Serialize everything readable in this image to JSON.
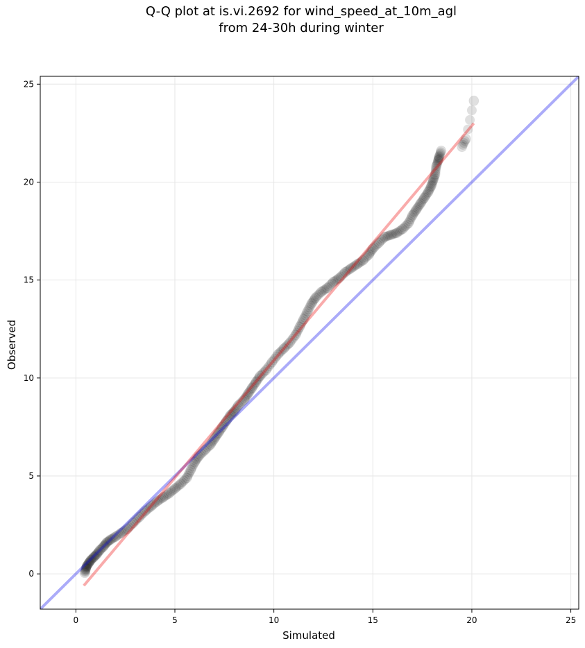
{
  "chart_data": {
    "type": "scatter",
    "title": "Q-Q plot at is.vi.2692 for wind_speed_at_10m_agl",
    "subtitle": "from 24-30h during winter",
    "xlabel": "Simulated",
    "ylabel": "Observed",
    "xlim": [
      -1.8,
      25.4
    ],
    "ylim": [
      -1.8,
      25.4
    ],
    "xticks": [
      0,
      5,
      10,
      15,
      20,
      25
    ],
    "yticks": [
      0,
      5,
      10,
      15,
      20,
      25
    ],
    "grid": true,
    "series": [
      {
        "marker": "circle",
        "color": "#000000",
        "points": [
          [
            0.45,
            0.05
          ],
          [
            0.5,
            0.25
          ],
          [
            0.55,
            0.4
          ],
          [
            0.65,
            0.55
          ],
          [
            0.75,
            0.7
          ],
          [
            0.9,
            0.85
          ],
          [
            1.05,
            1.0
          ],
          [
            1.2,
            1.2
          ],
          [
            1.4,
            1.4
          ],
          [
            1.55,
            1.6
          ],
          [
            1.75,
            1.75
          ],
          [
            2.0,
            1.9
          ],
          [
            2.3,
            2.1
          ],
          [
            2.6,
            2.3
          ],
          [
            2.9,
            2.6
          ],
          [
            3.2,
            2.9
          ],
          [
            3.5,
            3.2
          ],
          [
            3.8,
            3.45
          ],
          [
            4.1,
            3.7
          ],
          [
            4.4,
            3.9
          ],
          [
            4.7,
            4.1
          ],
          [
            5.0,
            4.35
          ],
          [
            5.3,
            4.6
          ],
          [
            5.6,
            4.9
          ],
          [
            5.8,
            5.3
          ],
          [
            6.0,
            5.7
          ],
          [
            6.2,
            6.0
          ],
          [
            6.5,
            6.3
          ],
          [
            6.8,
            6.6
          ],
          [
            7.0,
            6.9
          ],
          [
            7.2,
            7.2
          ],
          [
            7.4,
            7.5
          ],
          [
            7.6,
            7.8
          ],
          [
            7.8,
            8.1
          ],
          [
            8.0,
            8.3
          ],
          [
            8.2,
            8.6
          ],
          [
            8.5,
            8.9
          ],
          [
            8.7,
            9.2
          ],
          [
            8.9,
            9.5
          ],
          [
            9.1,
            9.8
          ],
          [
            9.3,
            10.1
          ],
          [
            9.6,
            10.4
          ],
          [
            9.9,
            10.8
          ],
          [
            10.2,
            11.2
          ],
          [
            10.5,
            11.5
          ],
          [
            10.8,
            11.8
          ],
          [
            11.1,
            12.2
          ],
          [
            11.3,
            12.6
          ],
          [
            11.5,
            13.0
          ],
          [
            11.7,
            13.4
          ],
          [
            11.9,
            13.8
          ],
          [
            12.1,
            14.1
          ],
          [
            12.4,
            14.4
          ],
          [
            12.7,
            14.6
          ],
          [
            13.0,
            14.9
          ],
          [
            13.3,
            15.1
          ],
          [
            13.6,
            15.4
          ],
          [
            13.9,
            15.6
          ],
          [
            14.2,
            15.8
          ],
          [
            14.5,
            16.0
          ],
          [
            14.8,
            16.3
          ],
          [
            15.0,
            16.6
          ],
          [
            15.3,
            16.9
          ],
          [
            15.6,
            17.2
          ],
          [
            15.9,
            17.3
          ],
          [
            16.2,
            17.4
          ],
          [
            16.5,
            17.6
          ],
          [
            16.8,
            17.9
          ],
          [
            17.0,
            18.3
          ],
          [
            17.2,
            18.6
          ],
          [
            17.4,
            18.9
          ],
          [
            17.6,
            19.2
          ],
          [
            17.8,
            19.5
          ],
          [
            17.95,
            19.8
          ],
          [
            18.05,
            20.1
          ],
          [
            18.15,
            20.4
          ],
          [
            18.2,
            20.8
          ],
          [
            18.3,
            21.1
          ],
          [
            18.35,
            21.3
          ],
          [
            18.45,
            21.6
          ],
          [
            19.5,
            21.8
          ],
          [
            19.7,
            22.2
          ],
          [
            20.1,
            24.15
          ]
        ]
      }
    ],
    "reference_lines": [
      {
        "name": "1:1",
        "color": "#0000ee",
        "from": [
          -1.8,
          -1.8
        ],
        "to": [
          25.4,
          25.4
        ]
      },
      {
        "name": "fit",
        "color": "#ee0000",
        "from": [
          0.4,
          -0.6
        ],
        "to": [
          20.1,
          23.0
        ]
      }
    ]
  }
}
